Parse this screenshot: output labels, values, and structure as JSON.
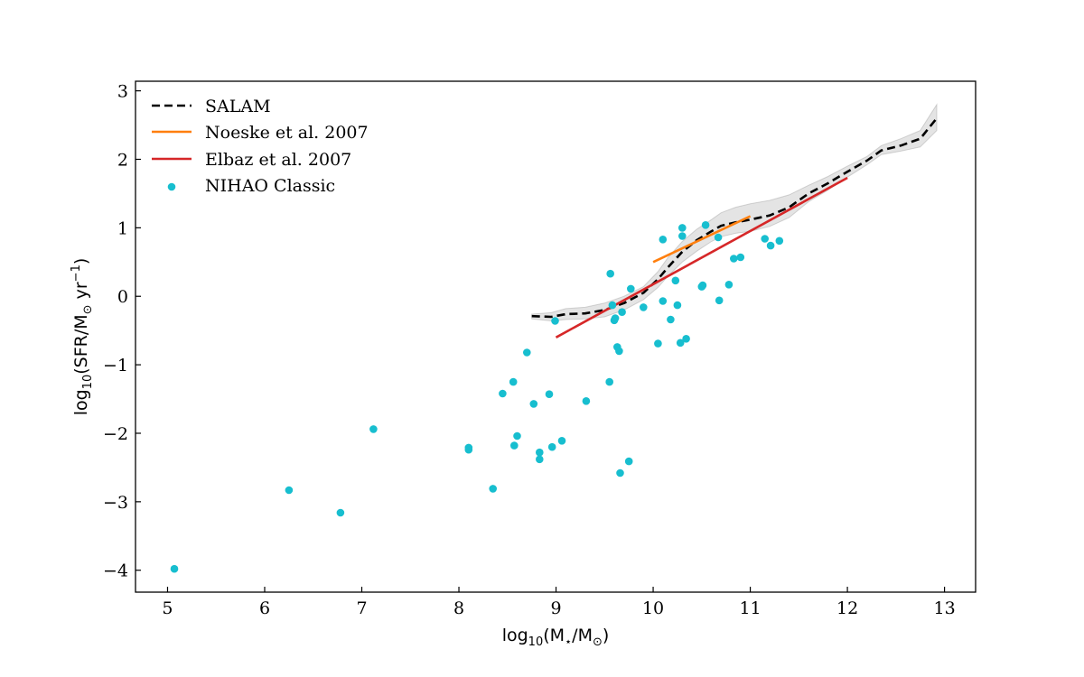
{
  "chart_data": {
    "type": "scatter",
    "xlabel": {
      "base": "log",
      "sub": "10",
      "pre": "(M",
      "star": "⋆",
      "mid": "/M",
      "sun": "⊙",
      "post": ")"
    },
    "ylabel": {
      "base": "log",
      "sub": "10",
      "pre": "(SFR/M",
      "sun": "⊙",
      "mid": " yr",
      "sup": "−1",
      "post": ")"
    },
    "xlim": [
      4.67,
      13.32
    ],
    "ylim": [
      -4.32,
      3.14
    ],
    "xticks": [
      5,
      6,
      7,
      8,
      9,
      10,
      11,
      12,
      13
    ],
    "yticks": [
      -4,
      -3,
      -2,
      -1,
      0,
      1,
      2,
      3
    ],
    "ytick_labels": [
      "−4",
      "−3",
      "−2",
      "−1",
      "0",
      "1",
      "2",
      "3"
    ],
    "legend_position": "upper-left",
    "grid": false,
    "series": [
      {
        "name": "SALAM",
        "kind": "dashed-line",
        "color": "#000000",
        "x": [
          8.75,
          8.95,
          9.1,
          9.3,
          9.5,
          9.7,
          9.9,
          10.05,
          10.15,
          10.3,
          10.45,
          10.6,
          10.7,
          10.85,
          11.0,
          11.2,
          11.4,
          11.6,
          11.8,
          12.0,
          12.2,
          12.35,
          12.55,
          12.75,
          12.92
        ],
        "y": [
          -0.29,
          -0.3,
          -0.26,
          -0.25,
          -0.2,
          -0.1,
          0.05,
          0.25,
          0.42,
          0.65,
          0.82,
          0.95,
          1.03,
          1.08,
          1.12,
          1.18,
          1.3,
          1.5,
          1.65,
          1.82,
          1.98,
          2.13,
          2.2,
          2.3,
          2.6
        ],
        "band_upper": [
          -0.26,
          -0.24,
          -0.18,
          -0.16,
          -0.1,
          0.0,
          0.14,
          0.36,
          0.56,
          0.8,
          0.98,
          1.12,
          1.22,
          1.3,
          1.35,
          1.4,
          1.48,
          1.62,
          1.75,
          1.9,
          2.04,
          2.2,
          2.3,
          2.42,
          2.8
        ],
        "band_lower": [
          -0.33,
          -0.36,
          -0.34,
          -0.33,
          -0.3,
          -0.2,
          -0.05,
          0.13,
          0.29,
          0.5,
          0.66,
          0.8,
          0.87,
          0.92,
          0.95,
          1.02,
          1.15,
          1.38,
          1.55,
          1.74,
          1.92,
          2.07,
          2.12,
          2.18,
          2.42
        ],
        "band_color": "#bbbbbb"
      },
      {
        "name": "Noeske et al. 2007",
        "kind": "line",
        "color": "#ff7f0e",
        "x": [
          10.0,
          11.0
        ],
        "y": [
          0.5,
          1.17
        ]
      },
      {
        "name": "Elbaz et al. 2007",
        "kind": "line",
        "color": "#d62728",
        "x": [
          9.0,
          12.0
        ],
        "y": [
          -0.6,
          1.73
        ]
      },
      {
        "name": "NIHAO Classic",
        "kind": "scatter",
        "color": "#17becf",
        "x": [
          5.07,
          6.25,
          6.78,
          7.12,
          8.1,
          8.1,
          8.35,
          8.45,
          8.57,
          8.56,
          8.6,
          8.7,
          8.77,
          8.83,
          8.83,
          8.93,
          8.96,
          8.99,
          9.06,
          9.31,
          9.55,
          9.56,
          9.58,
          9.6,
          9.61,
          9.63,
          9.65,
          9.66,
          9.68,
          9.75,
          9.77,
          9.9,
          10.05,
          10.1,
          10.1,
          10.18,
          10.23,
          10.25,
          10.28,
          10.3,
          10.3,
          10.34,
          10.5,
          10.51,
          10.54,
          10.67,
          10.68,
          10.78,
          10.83,
          10.9,
          11.15,
          11.21,
          11.3
        ],
        "y": [
          -3.98,
          -2.83,
          -3.16,
          -1.94,
          -2.21,
          -2.24,
          -2.81,
          -1.42,
          -2.18,
          -1.25,
          -2.04,
          -0.82,
          -1.57,
          -2.28,
          -2.38,
          -1.43,
          -2.2,
          -0.36,
          -2.11,
          -1.53,
          -1.25,
          0.33,
          -0.13,
          -0.35,
          -0.32,
          -0.74,
          -0.8,
          -2.58,
          -0.23,
          -2.41,
          0.11,
          -0.16,
          -0.69,
          0.83,
          -0.07,
          -0.34,
          0.23,
          -0.13,
          -0.68,
          1.0,
          0.88,
          -0.62,
          0.14,
          0.16,
          1.04,
          0.86,
          -0.06,
          0.17,
          0.55,
          0.57,
          0.84,
          0.74,
          0.81
        ]
      }
    ]
  }
}
